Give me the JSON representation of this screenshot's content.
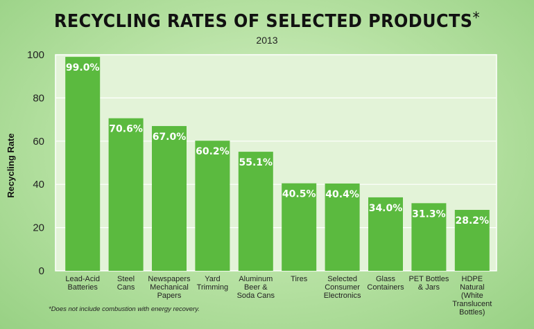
{
  "title": "RECYCLING RATES OF SELECTED PRODUCTS",
  "title_mark": "*",
  "footnote": "*Does not include combustion with energy recovery.",
  "colors": {
    "bar": "#5bba3f",
    "plot_bg": "#e3f3d8",
    "grid": "#ffffff"
  },
  "chart_data": {
    "type": "bar",
    "title": "RECYCLING RATES OF SELECTED PRODUCTS*",
    "subtitle": "2013",
    "xlabel": "",
    "ylabel": "Recycling Rate",
    "ylim": [
      0,
      100
    ],
    "yticks": [
      0,
      20,
      40,
      60,
      80,
      100
    ],
    "grid": true,
    "categories": [
      [
        "Lead-Acid",
        "Batteries"
      ],
      [
        "Steel",
        "Cans"
      ],
      [
        "Newspapers",
        "Mechanical",
        "Papers"
      ],
      [
        "Yard",
        "Trimming"
      ],
      [
        "Aluminum",
        "Beer &",
        "Soda Cans"
      ],
      [
        "Tires"
      ],
      [
        "Selected",
        "Consumer",
        "Electronics"
      ],
      [
        "Glass",
        "Containers"
      ],
      [
        "PET Bottles",
        "& Jars"
      ],
      [
        "HDPE",
        "Natural",
        "(White",
        "Translucent",
        "Bottles)"
      ]
    ],
    "values": [
      99.0,
      70.6,
      67.0,
      60.2,
      55.1,
      40.5,
      40.4,
      34.0,
      31.3,
      28.2
    ],
    "value_labels": [
      "99.0%",
      "70.6%",
      "67.0%",
      "60.2%",
      "55.1%",
      "40.5%",
      "40.4%",
      "34.0%",
      "31.3%",
      "28.2%"
    ]
  }
}
